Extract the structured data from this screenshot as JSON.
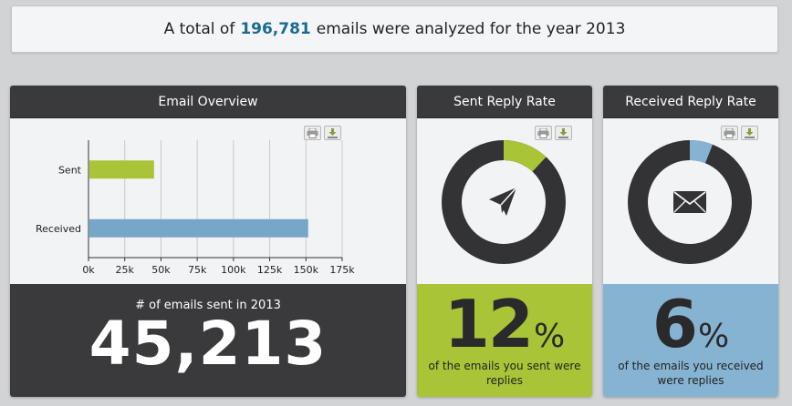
{
  "banner": {
    "prefix": "A total of",
    "total": "196,781",
    "suffix": "emails were analyzed for the year 2013"
  },
  "overview": {
    "title": "Email Overview",
    "stat_label": "# of emails sent in 2013",
    "stat_value": "45,213"
  },
  "sent_rate": {
    "title": "Sent Reply Rate",
    "percent": "12",
    "percent_sign": "%",
    "caption": "of the emails you sent were replies",
    "fraction": 0.12,
    "color": "#a9c537",
    "icon": "paper-plane-icon"
  },
  "recv_rate": {
    "title": "Received Reply Rate",
    "percent": "6",
    "percent_sign": "%",
    "caption": "of the emails you received were replies",
    "fraction": 0.06,
    "color": "#86b3d2",
    "icon": "envelope-icon"
  },
  "toolbar": {
    "print_icon": "print-icon",
    "download_icon": "download-icon"
  },
  "colors": {
    "dark": "#333336",
    "sent": "#a9c537",
    "received": "#76a6c8"
  },
  "chart_data": {
    "type": "bar",
    "orientation": "horizontal",
    "categories": [
      "Sent",
      "Received"
    ],
    "values": [
      45213,
      151568
    ],
    "colors": [
      "#a9c537",
      "#76a6c8"
    ],
    "xticks": [
      "0k",
      "25k",
      "50k",
      "75k",
      "100k",
      "125k",
      "150k",
      "175k"
    ],
    "xlim": [
      0,
      175000
    ],
    "grid": true,
    "title": "",
    "xlabel": "",
    "ylabel": ""
  }
}
